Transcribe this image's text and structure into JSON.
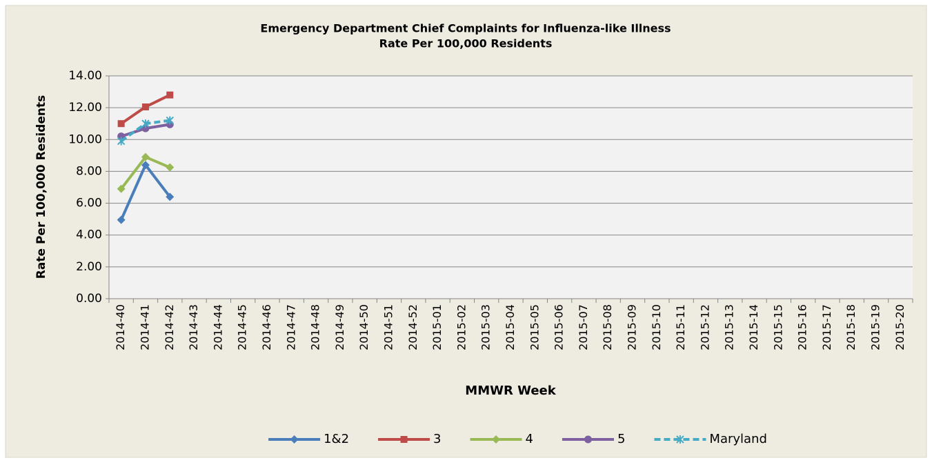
{
  "chart_data": {
    "type": "line",
    "title": "Emergency Department Chief Complaints for Influenza-like Illness",
    "subtitle": "Rate Per 100,000 Residents",
    "x_label": "MMWR Week",
    "y_label": "Rate Per 100,000 Residents",
    "categories": [
      "2014-40",
      "2014-41",
      "2014-42",
      "2014-43",
      "2014-44",
      "2014-45",
      "2014-46",
      "2014-47",
      "2014-48",
      "2014-49",
      "2014-50",
      "2014-51",
      "2014-52",
      "2015-01",
      "2015-02",
      "2015-03",
      "2015-04",
      "2015-05",
      "2015-06",
      "2015-07",
      "2015-08",
      "2015-09",
      "2015-10",
      "2015-11",
      "2015-12",
      "2015-13",
      "2015-14",
      "2015-15",
      "2015-16",
      "2015-17",
      "2015-18",
      "2015-19",
      "2015-20"
    ],
    "series": [
      {
        "name": "1&2",
        "color": "#4a7ebb",
        "marker": "diamond",
        "dashed": false,
        "values": [
          4.95,
          8.4,
          6.4,
          null,
          null,
          null,
          null,
          null,
          null,
          null,
          null,
          null,
          null,
          null,
          null,
          null,
          null,
          null,
          null,
          null,
          null,
          null,
          null,
          null,
          null,
          null,
          null,
          null,
          null,
          null,
          null,
          null,
          null
        ]
      },
      {
        "name": "3",
        "color": "#be4b48",
        "marker": "square",
        "dashed": false,
        "values": [
          11.0,
          12.05,
          12.8,
          null,
          null,
          null,
          null,
          null,
          null,
          null,
          null,
          null,
          null,
          null,
          null,
          null,
          null,
          null,
          null,
          null,
          null,
          null,
          null,
          null,
          null,
          null,
          null,
          null,
          null,
          null,
          null,
          null,
          null
        ]
      },
      {
        "name": "4",
        "color": "#98b954",
        "marker": "diamond",
        "dashed": false,
        "values": [
          6.9,
          8.9,
          8.25,
          null,
          null,
          null,
          null,
          null,
          null,
          null,
          null,
          null,
          null,
          null,
          null,
          null,
          null,
          null,
          null,
          null,
          null,
          null,
          null,
          null,
          null,
          null,
          null,
          null,
          null,
          null,
          null,
          null,
          null
        ]
      },
      {
        "name": "5",
        "color": "#7d60a0",
        "marker": "circle",
        "dashed": false,
        "values": [
          10.2,
          10.7,
          10.95,
          null,
          null,
          null,
          null,
          null,
          null,
          null,
          null,
          null,
          null,
          null,
          null,
          null,
          null,
          null,
          null,
          null,
          null,
          null,
          null,
          null,
          null,
          null,
          null,
          null,
          null,
          null,
          null,
          null,
          null
        ]
      },
      {
        "name": "Maryland",
        "color": "#46aac5",
        "marker": "star",
        "dashed": true,
        "values": [
          9.9,
          11.0,
          11.2,
          null,
          null,
          null,
          null,
          null,
          null,
          null,
          null,
          null,
          null,
          null,
          null,
          null,
          null,
          null,
          null,
          null,
          null,
          null,
          null,
          null,
          null,
          null,
          null,
          null,
          null,
          null,
          null,
          null,
          null
        ]
      }
    ],
    "ylim": [
      0,
      14
    ],
    "yticks": [
      {
        "value": 0,
        "label": "0.00"
      },
      {
        "value": 2,
        "label": "2.00"
      },
      {
        "value": 4,
        "label": "4.00"
      },
      {
        "value": 6,
        "label": "6.00"
      },
      {
        "value": 8,
        "label": "8.00"
      },
      {
        "value": 10,
        "label": "10.00"
      },
      {
        "value": 12,
        "label": "12.00"
      },
      {
        "value": 14,
        "label": "14.00"
      }
    ],
    "grid": true,
    "legend": "bottom"
  }
}
